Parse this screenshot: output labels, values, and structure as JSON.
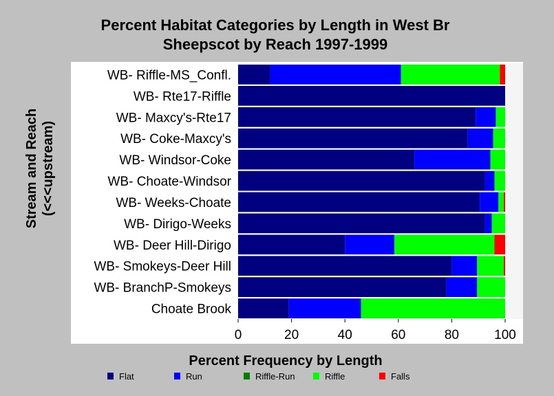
{
  "chart_data": {
    "type": "bar",
    "orientation": "horizontal",
    "stacked": true,
    "title_lines": [
      "Percent Habitat Categories by Length in West Br",
      "Sheepscot by Reach 1997-1999"
    ],
    "xlabel": "Percent Frequency by Length",
    "ylabel_lines": [
      "Stream and Reach",
      "(<<<upstream)"
    ],
    "xlim": [
      0,
      100
    ],
    "xticks": [
      "0",
      "20",
      "40",
      "60",
      "80",
      "100"
    ],
    "grid": false,
    "legend_position": "bottom",
    "categories": [
      "WB- Riffle-MS_Confl.",
      "WB- Rte17-Riffle",
      "WB- Maxcy's-Rte17",
      "WB- Coke-Maxcy's",
      "WB- Windsor-Coke",
      "WB- Choate-Windsor",
      "WB- Weeks-Choate",
      "WB- Dirigo-Weeks",
      "WB- Deer Hill-Dirigo",
      "WB- Smokeys-Deer Hill",
      "WB- BranchP-Smokeys",
      "Choate Brook"
    ],
    "series": [
      {
        "name": "Flat",
        "color": "#000080",
        "values": [
          12,
          100,
          89,
          86,
          66,
          92.5,
          90.5,
          92.5,
          40,
          80,
          78,
          19
        ]
      },
      {
        "name": "Run",
        "color": "#0000ff",
        "values": [
          49,
          0,
          7.5,
          9.5,
          28.5,
          3.5,
          7,
          2.5,
          18.5,
          9.5,
          11.5,
          27
        ]
      },
      {
        "name": "Riffle-Run",
        "color": "#008000",
        "values": [
          0,
          0,
          0,
          0,
          0,
          0,
          0,
          0,
          0,
          0,
          0,
          0
        ]
      },
      {
        "name": "Riffle",
        "color": "#00ff00",
        "values": [
          37,
          0,
          3.5,
          4.5,
          5.5,
          4,
          2,
          5,
          37.5,
          10,
          10.5,
          54
        ]
      },
      {
        "name": "Falls",
        "color": "#ff0000",
        "values": [
          2,
          0,
          0,
          0,
          0,
          0,
          0.5,
          0,
          4,
          0.5,
          0,
          0
        ]
      }
    ]
  },
  "colors": {
    "background": "#c0c0c0",
    "plot_background": "#f5f5f5",
    "bar_outline": "#ffffff"
  }
}
